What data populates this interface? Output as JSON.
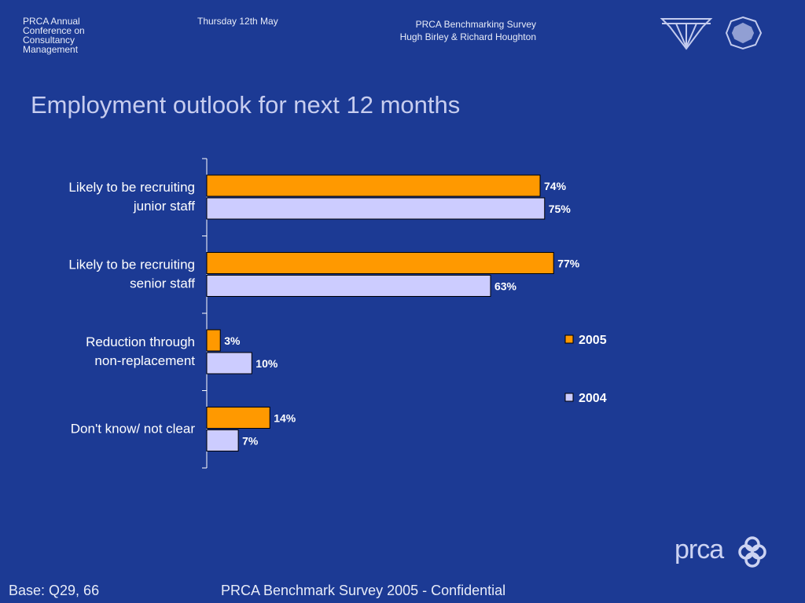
{
  "header": {
    "conference": "PRCA Annual Conference on Consultancy Management",
    "date": "Thursday 12th May",
    "survey_line1": "PRCA Benchmarking Survey",
    "survey_line2": "Hugh Birley & Richard Houghton"
  },
  "footer": {
    "base": "Base: Q29, 66",
    "confidential": "PRCA Benchmark Survey 2005 - Confidential"
  },
  "logo": {
    "text": "prca"
  },
  "chart_data": {
    "type": "bar",
    "orientation": "horizontal",
    "title": "Employment outlook for next 12 months",
    "categories": [
      [
        "Likely to be recruiting",
        "junior staff"
      ],
      [
        "Likely to be recruiting",
        "senior staff"
      ],
      [
        "Reduction through",
        "non-replacement"
      ],
      [
        "Don't know/ not clear"
      ]
    ],
    "series": [
      {
        "name": "2005",
        "values": [
          74,
          77,
          3,
          14
        ],
        "labels": [
          "74%",
          "77%",
          "3%",
          "14%"
        ],
        "color": "#ff9900"
      },
      {
        "name": "2004",
        "values": [
          75,
          63,
          10,
          7
        ],
        "labels": [
          "75%",
          "63%",
          "10%",
          "7%"
        ],
        "color": "#ccccff"
      }
    ],
    "value_unit": "%",
    "legend_position": "right",
    "grid": false
  }
}
